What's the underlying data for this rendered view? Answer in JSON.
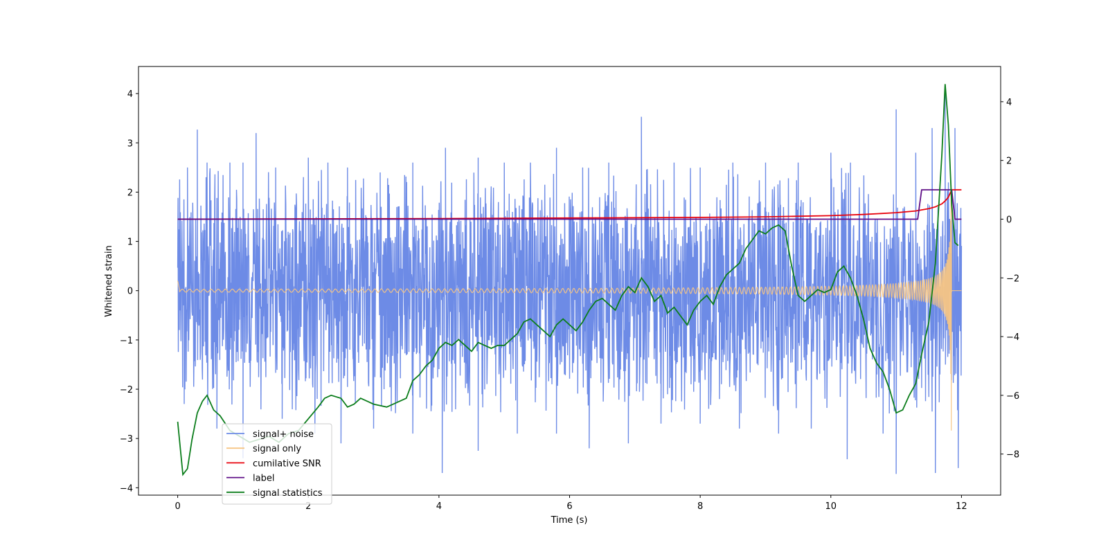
{
  "chart_data": {
    "type": "line",
    "xlabel": "Time (s)",
    "ylabel": "Whitened strain",
    "xlim": [
      -0.6,
      12.6
    ],
    "ylim": [
      -4.15,
      4.55
    ],
    "y2lim": [
      -9.4,
      5.2
    ],
    "xticks": [
      0,
      2,
      4,
      6,
      8,
      10,
      12
    ],
    "yticks": [
      -4,
      -3,
      -2,
      -1,
      0,
      1,
      2,
      3,
      4
    ],
    "y2ticks": [
      -8,
      -6,
      -4,
      -2,
      0,
      2,
      4
    ],
    "legend_position": "lower-left",
    "grid": false,
    "series": [
      {
        "name": "signal+ noise",
        "axis": "left",
        "color": "#6d8be6",
        "x_range": [
          0,
          12
        ],
        "band": {
          "typical_low": -1.5,
          "typical_high": 1.5,
          "spikes": [
            [
              0.15,
              2.5
            ],
            [
              0.3,
              3.27
            ],
            [
              0.45,
              2.6
            ],
            [
              0.8,
              2.6
            ],
            [
              1.0,
              2.6
            ],
            [
              1.2,
              3.2
            ],
            [
              1.5,
              2.5
            ],
            [
              2.0,
              2.7
            ],
            [
              2.3,
              2.6
            ],
            [
              2.6,
              2.5
            ],
            [
              3.1,
              2.4
            ],
            [
              3.6,
              2.6
            ],
            [
              4.1,
              2.9
            ],
            [
              4.6,
              2.7
            ],
            [
              5.0,
              2.6
            ],
            [
              5.4,
              2.6
            ],
            [
              5.8,
              2.9
            ],
            [
              6.2,
              2.5
            ],
            [
              6.6,
              2.6
            ],
            [
              7.1,
              3.53
            ],
            [
              7.6,
              2.6
            ],
            [
              8.0,
              2.5
            ],
            [
              8.5,
              2.6
            ],
            [
              9.0,
              2.6
            ],
            [
              9.5,
              2.6
            ],
            [
              10.0,
              2.8
            ],
            [
              10.3,
              2.6
            ],
            [
              11.0,
              3.68
            ],
            [
              11.3,
              2.8
            ],
            [
              11.55,
              3.3
            ],
            [
              11.75,
              4.18
            ],
            [
              11.9,
              3.3
            ]
          ],
          "dips": [
            [
              0.1,
              -2.3
            ],
            [
              0.6,
              -2.8
            ],
            [
              1.0,
              -3.4
            ],
            [
              1.6,
              -2.6
            ],
            [
              2.1,
              -2.9
            ],
            [
              2.5,
              -3.1
            ],
            [
              3.0,
              -2.8
            ],
            [
              3.6,
              -2.9
            ],
            [
              4.05,
              -3.7
            ],
            [
              4.6,
              -3.25
            ],
            [
              5.2,
              -2.9
            ],
            [
              5.8,
              -2.9
            ],
            [
              6.3,
              -3.2
            ],
            [
              6.9,
              -3.1
            ],
            [
              7.4,
              -2.7
            ],
            [
              8.0,
              -2.7
            ],
            [
              8.6,
              -2.8
            ],
            [
              9.2,
              -2.9
            ],
            [
              9.7,
              -2.8
            ],
            [
              10.25,
              -3.42
            ],
            [
              10.8,
              -2.9
            ],
            [
              11.0,
              -3.72
            ],
            [
              11.6,
              -3.7
            ],
            [
              11.95,
              -3.6
            ]
          ]
        }
      },
      {
        "name": "signal only",
        "axis": "left",
        "color": "#f7c584",
        "x_range": [
          0,
          12
        ]
      },
      {
        "name": "cumilative SNR",
        "axis": "right",
        "color": "#e8000b",
        "x": [
          0,
          2,
          4,
          6,
          8,
          9,
          10,
          10.5,
          11,
          11.3,
          11.5,
          11.6,
          11.7,
          11.75,
          11.8,
          11.85,
          12.0
        ],
        "y": [
          0,
          0.01,
          0.02,
          0.04,
          0.06,
          0.08,
          0.12,
          0.16,
          0.22,
          0.28,
          0.36,
          0.42,
          0.52,
          0.62,
          0.75,
          1.0,
          1.0
        ]
      },
      {
        "name": "label",
        "axis": "right",
        "color": "#5e0d86",
        "x": [
          0,
          11.33,
          11.36,
          11.39,
          11.45,
          11.85,
          11.9,
          12.0
        ],
        "y": [
          0,
          0,
          0.5,
          1,
          1,
          1,
          0,
          0
        ]
      },
      {
        "name": "signal statistics",
        "axis": "right",
        "color": "#0b7d1b",
        "x": [
          0.0,
          0.08,
          0.15,
          0.22,
          0.3,
          0.38,
          0.45,
          0.55,
          0.65,
          0.8,
          0.95,
          1.1,
          1.25,
          1.4,
          1.55,
          1.7,
          1.85,
          2.0,
          2.15,
          2.25,
          2.35,
          2.5,
          2.6,
          2.7,
          2.8,
          2.9,
          3.0,
          3.2,
          3.4,
          3.5,
          3.6,
          3.7,
          3.8,
          3.9,
          4.0,
          4.1,
          4.2,
          4.3,
          4.4,
          4.5,
          4.6,
          4.7,
          4.8,
          4.9,
          5.0,
          5.1,
          5.2,
          5.3,
          5.4,
          5.5,
          5.6,
          5.7,
          5.8,
          5.9,
          6.0,
          6.1,
          6.2,
          6.3,
          6.4,
          6.5,
          6.6,
          6.7,
          6.8,
          6.9,
          7.0,
          7.1,
          7.2,
          7.3,
          7.4,
          7.5,
          7.6,
          7.7,
          7.8,
          7.9,
          8.0,
          8.1,
          8.2,
          8.3,
          8.4,
          8.5,
          8.6,
          8.7,
          8.8,
          8.9,
          9.0,
          9.1,
          9.2,
          9.3,
          9.4,
          9.5,
          9.6,
          9.7,
          9.8,
          9.9,
          10.0,
          10.1,
          10.2,
          10.3,
          10.4,
          10.5,
          10.6,
          10.7,
          10.8,
          10.9,
          11.0,
          11.1,
          11.2,
          11.3,
          11.4,
          11.5,
          11.6,
          11.7,
          11.75,
          11.8,
          11.85,
          11.9,
          11.95
        ],
        "y": [
          -6.9,
          -8.7,
          -8.5,
          -7.5,
          -6.6,
          -6.2,
          -6.0,
          -6.5,
          -6.7,
          -7.2,
          -7.4,
          -7.6,
          -7.5,
          -7.4,
          -7.6,
          -7.3,
          -7.2,
          -6.8,
          -6.4,
          -6.1,
          -6.0,
          -6.1,
          -6.4,
          -6.3,
          -6.1,
          -6.2,
          -6.3,
          -6.4,
          -6.2,
          -6.1,
          -5.5,
          -5.3,
          -5.0,
          -4.8,
          -4.4,
          -4.2,
          -4.3,
          -4.1,
          -4.3,
          -4.5,
          -4.2,
          -4.3,
          -4.4,
          -4.3,
          -4.3,
          -4.1,
          -3.9,
          -3.5,
          -3.4,
          -3.6,
          -3.8,
          -4.0,
          -3.6,
          -3.4,
          -3.6,
          -3.8,
          -3.5,
          -3.1,
          -2.8,
          -2.7,
          -2.9,
          -3.1,
          -2.6,
          -2.3,
          -2.5,
          -2.0,
          -2.3,
          -2.8,
          -2.6,
          -3.2,
          -3.0,
          -3.3,
          -3.6,
          -3.1,
          -2.8,
          -2.6,
          -2.9,
          -2.3,
          -1.9,
          -1.7,
          -1.5,
          -1.0,
          -0.7,
          -0.4,
          -0.5,
          -0.3,
          -0.2,
          -0.4,
          -1.6,
          -2.6,
          -2.8,
          -2.6,
          -2.4,
          -2.5,
          -2.4,
          -1.8,
          -1.6,
          -2.0,
          -2.6,
          -3.4,
          -4.4,
          -4.9,
          -5.2,
          -5.8,
          -6.6,
          -6.5,
          -6.0,
          -5.6,
          -4.5,
          -3.5,
          -1.5,
          2.2,
          4.6,
          3.2,
          0.5,
          -0.8,
          -0.9
        ]
      }
    ]
  }
}
